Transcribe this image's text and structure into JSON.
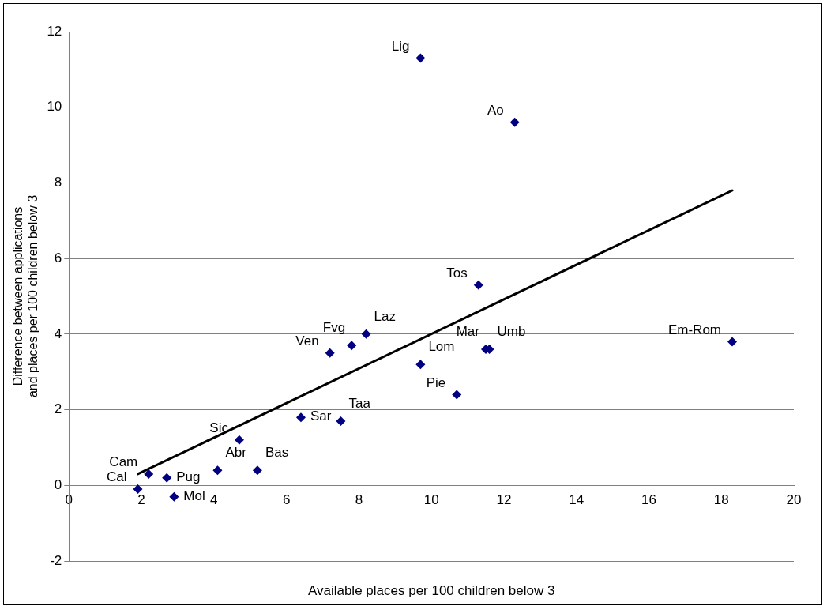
{
  "chart_data": {
    "type": "scatter",
    "xlabel": "Available places per 100 children below 3",
    "ylabel": "Difference between applications and places per 100 children below 3",
    "xlim": [
      0,
      20
    ],
    "xticks": [
      0,
      2,
      4,
      6,
      8,
      10,
      12,
      14,
      16,
      18,
      20
    ],
    "ylim": [
      -2,
      12
    ],
    "yticks": [
      -2,
      0,
      2,
      4,
      6,
      8,
      10,
      12
    ],
    "grid": "y",
    "legend": false,
    "marker": "diamond",
    "series": [
      {
        "color": "#000080",
        "x": [
          1.9,
          2.2,
          2.7,
          2.9,
          4.1,
          5.2,
          4.7,
          6.4,
          7.5,
          7.2,
          7.8,
          8.2,
          9.7,
          9.7,
          10.7,
          11.3,
          11.5,
          11.6,
          12.3,
          18.3
        ],
        "values": [
          -0.1,
          0.3,
          0.2,
          -0.3,
          0.4,
          0.4,
          1.2,
          1.8,
          1.7,
          3.5,
          3.7,
          4.0,
          3.2,
          11.3,
          2.4,
          5.3,
          3.6,
          3.6,
          9.6,
          3.8
        ]
      },
      {
        "type": "line",
        "marker": "none",
        "color": "#000000",
        "x": [
          1.9,
          18.3
        ],
        "values": [
          0.3,
          7.8
        ]
      }
    ],
    "annotations": [
      {
        "text": "Cal",
        "x": 1.9,
        "y": -0.1
      },
      {
        "text": "Cam",
        "x": 2.2,
        "y": 0.3
      },
      {
        "text": "Pug",
        "x": 2.7,
        "y": 0.2
      },
      {
        "text": "Mol",
        "x": 2.9,
        "y": -0.3
      },
      {
        "text": "Abr",
        "x": 4.1,
        "y": 0.4
      },
      {
        "text": "Bas",
        "x": 5.2,
        "y": 0.4
      },
      {
        "text": "Sic",
        "x": 4.7,
        "y": 1.2
      },
      {
        "text": "Sar",
        "x": 6.4,
        "y": 1.8
      },
      {
        "text": "Taa",
        "x": 7.5,
        "y": 1.7
      },
      {
        "text": "Ven",
        "x": 7.2,
        "y": 3.5
      },
      {
        "text": "Fvg",
        "x": 7.8,
        "y": 3.7
      },
      {
        "text": "Laz",
        "x": 8.2,
        "y": 4.0
      },
      {
        "text": "Lom",
        "x": 9.7,
        "y": 3.2
      },
      {
        "text": "Lig",
        "x": 9.7,
        "y": 11.3
      },
      {
        "text": "Pie",
        "x": 10.7,
        "y": 2.4
      },
      {
        "text": "Tos",
        "x": 11.3,
        "y": 5.3
      },
      {
        "text": "Mar",
        "x": 11.5,
        "y": 3.6
      },
      {
        "text": "Umb",
        "x": 11.6,
        "y": 3.6
      },
      {
        "text": "Ao",
        "x": 12.3,
        "y": 9.6
      },
      {
        "text": "Em-Rom",
        "x": 18.3,
        "y": 3.8
      }
    ]
  }
}
